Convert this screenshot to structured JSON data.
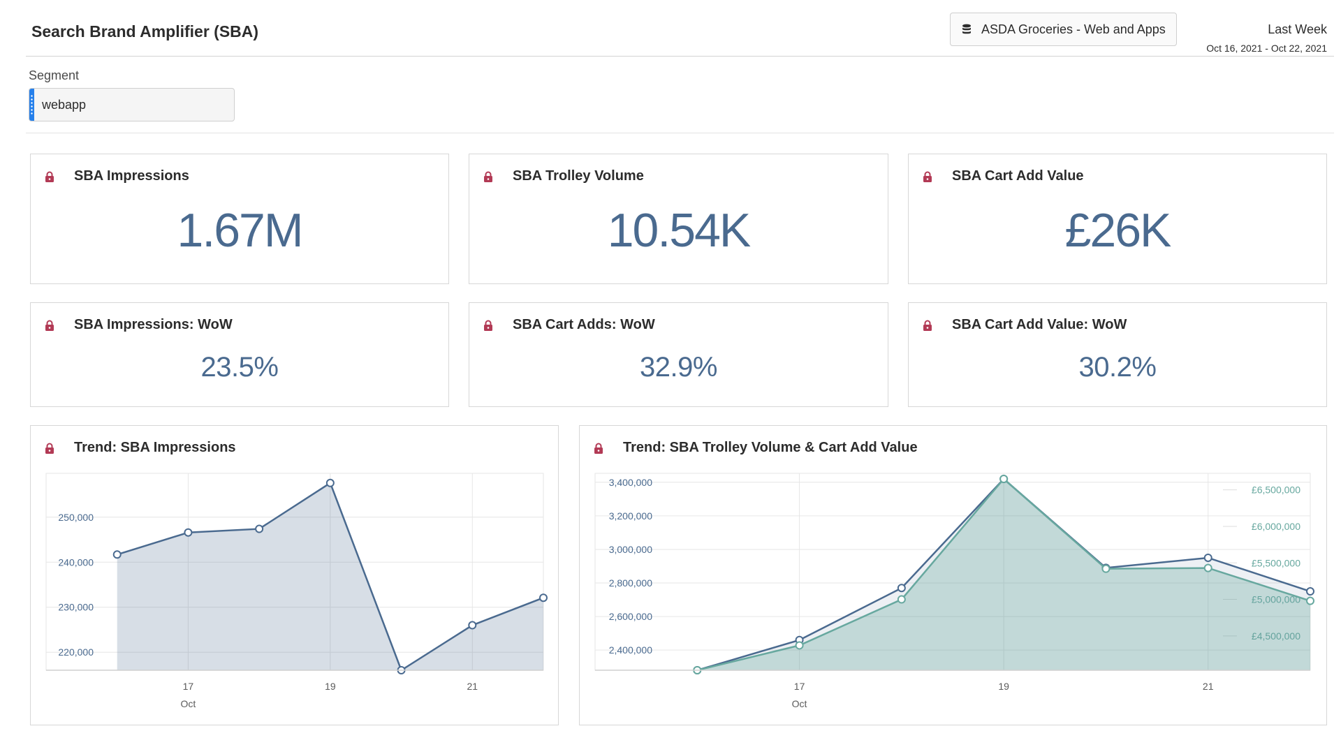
{
  "header": {
    "title": "Search Brand Amplifier (SBA)",
    "data_source": "ASDA Groceries - Web and Apps",
    "data_source_icon": "database-icon",
    "date_range_label": "Last Week",
    "date_range": "Oct 16, 2021 - Oct 22, 2021"
  },
  "segment": {
    "label": "Segment",
    "value": "webapp"
  },
  "colors": {
    "accent_blue": "#4a6a8f",
    "accent_teal": "#67a89f",
    "lock": "#b23a55",
    "segment_handle": "#2680eb"
  },
  "kpis": [
    {
      "title": "SBA Impressions",
      "value": "1.67M",
      "icon": "lock-icon"
    },
    {
      "title": "SBA Trolley Volume",
      "value": "10.54K",
      "icon": "lock-icon"
    },
    {
      "title": "SBA Cart Add Value",
      "value": "£26K",
      "icon": "lock-icon"
    }
  ],
  "wow": [
    {
      "title": "SBA Impressions: WoW",
      "value": "23.5%",
      "icon": "lock-icon"
    },
    {
      "title": "SBA Cart Adds: WoW",
      "value": "32.9%",
      "icon": "lock-icon"
    },
    {
      "title": "SBA Cart Add Value: WoW",
      "value": "30.2%",
      "icon": "lock-icon"
    }
  ],
  "trend_impressions": {
    "title": "Trend: SBA Impressions",
    "icon": "lock-icon"
  },
  "trend_trolley": {
    "title": "Trend: SBA Trolley Volume & Cart Add Value",
    "icon": "lock-icon"
  },
  "chart_data": [
    {
      "type": "area",
      "title": "Trend: SBA Impressions",
      "x": [
        "Oct 16",
        "Oct 17",
        "Oct 18",
        "Oct 19",
        "Oct 20",
        "Oct 21",
        "Oct 22"
      ],
      "x_tick_labels": [
        "17",
        "19",
        "21"
      ],
      "x_tick_values": [
        "Oct 17",
        "Oct 19",
        "Oct 21"
      ],
      "x_sublabel": "Oct",
      "y_tick_labels": [
        "220,000",
        "230,000",
        "240,000",
        "250,000"
      ],
      "ylim": [
        216000,
        258500
      ],
      "series": [
        {
          "values": [
            241700,
            246600,
            247400,
            257600,
            216000,
            226000,
            232100
          ],
          "color": "#4a6a8f"
        }
      ],
      "grid": true
    },
    {
      "type": "area",
      "title": "Trend: SBA Trolley Volume & Cart Add Value",
      "x": [
        "Oct 16",
        "Oct 17",
        "Oct 18",
        "Oct 19",
        "Oct 20",
        "Oct 21",
        "Oct 22"
      ],
      "x_tick_labels": [
        "17",
        "19",
        "21"
      ],
      "x_tick_values": [
        "Oct 17",
        "Oct 19",
        "Oct 21"
      ],
      "x_sublabel": "Oct",
      "y_tick_labels": [
        "2,400,000",
        "2,600,000",
        "2,800,000",
        "3,000,000",
        "3,200,000",
        "3,400,000"
      ],
      "ylim": [
        2280000,
        3420000
      ],
      "y2_tick_labels": [
        "£4,500,000",
        "£5,000,000",
        "£5,500,000",
        "£6,000,000",
        "£6,500,000"
      ],
      "y2lim": [
        4030000,
        6650000
      ],
      "series": [
        {
          "axis": "left",
          "color": "#4a6a8f",
          "values": [
            2280000,
            2460000,
            2770000,
            3420000,
            2890000,
            2950000,
            2750000
          ]
        },
        {
          "axis": "right",
          "color": "#67a89f",
          "values": [
            4030000,
            4370000,
            5000000,
            6650000,
            5420000,
            5430000,
            4980000
          ]
        }
      ],
      "grid": true
    }
  ]
}
